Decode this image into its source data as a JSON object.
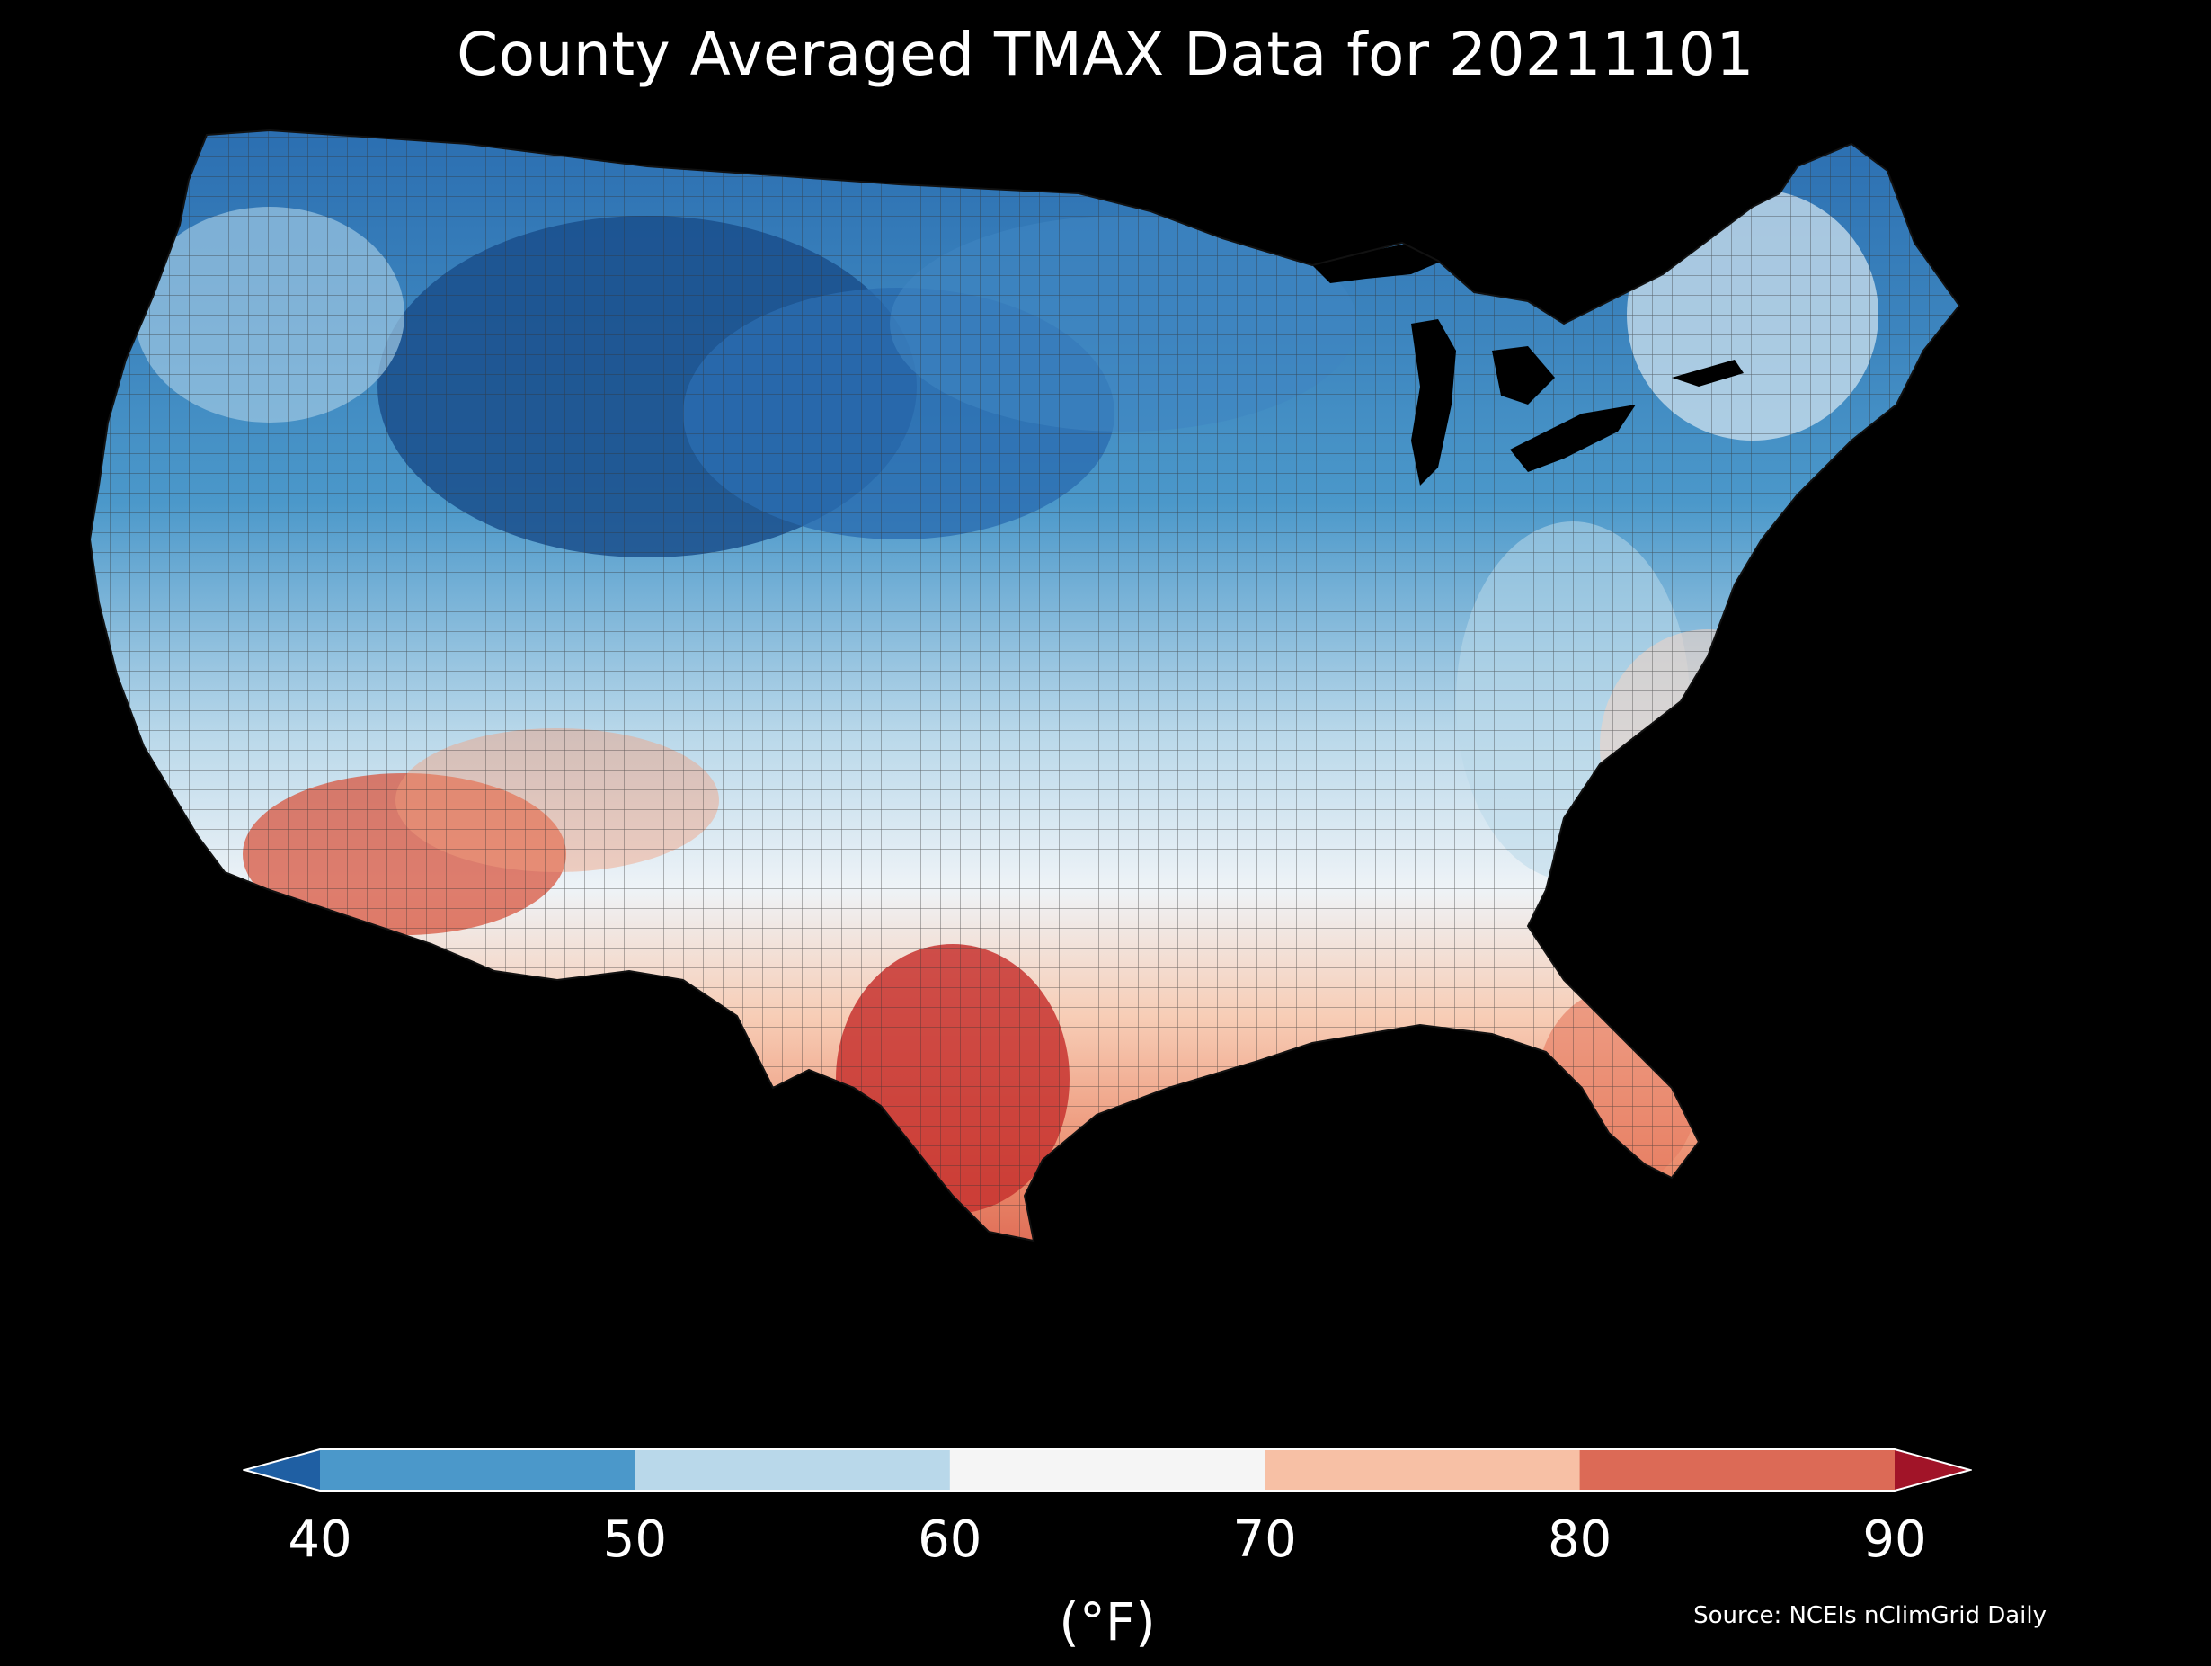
{
  "title": "County Averaged TMAX Data for 20211101",
  "colorbar": {
    "unit": "(°F)",
    "ticks": [
      "40",
      "50",
      "60",
      "70",
      "80",
      "90"
    ],
    "bins": [
      {
        "range": "<40",
        "color": "#1f5fa3"
      },
      {
        "range": "40-50",
        "color": "#4b98ca"
      },
      {
        "range": "50-60",
        "color": "#b9d8ea"
      },
      {
        "range": "60-70",
        "color": "#f5f5f5"
      },
      {
        "range": "70-80",
        "color": "#f7c0a5"
      },
      {
        "range": "80-90",
        "color": "#dc6a56"
      },
      {
        "range": ">90",
        "color": "#a11428"
      }
    ]
  },
  "source": "Source: NCEIs nClimGrid Daily",
  "map_colors": {
    "background": "#000000",
    "very_cold": "#1a4f8c",
    "cold": "#3f86c2",
    "cool": "#9ec8e2",
    "mild": "#e8f0f6",
    "warm": "#f9dccd",
    "hot": "#f2a07f",
    "very_hot": "#cf3d3a",
    "county_lines": "#2a2a2a"
  }
}
